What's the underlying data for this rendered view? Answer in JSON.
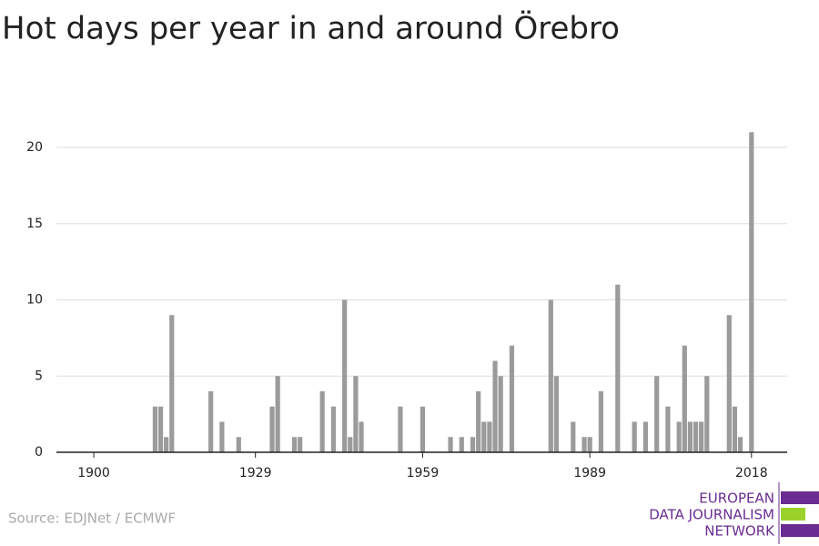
{
  "chart_data": {
    "type": "bar",
    "title": "Hot days per year in and around Örebro",
    "source": "Source: EDJNet / ECMWF",
    "logo": [
      "EUROPEAN",
      "DATA JOURNALISM",
      "NETWORK"
    ],
    "color": "#9b9b9b",
    "x": [
      1900,
      1901,
      1902,
      1903,
      1904,
      1905,
      1906,
      1907,
      1908,
      1909,
      1910,
      1911,
      1912,
      1913,
      1914,
      1915,
      1916,
      1917,
      1918,
      1919,
      1920,
      1921,
      1922,
      1923,
      1924,
      1925,
      1926,
      1927,
      1928,
      1929,
      1930,
      1931,
      1932,
      1933,
      1934,
      1935,
      1936,
      1937,
      1938,
      1939,
      1940,
      1941,
      1942,
      1943,
      1944,
      1945,
      1946,
      1947,
      1948,
      1949,
      1950,
      1951,
      1952,
      1953,
      1954,
      1955,
      1956,
      1957,
      1958,
      1959,
      1960,
      1961,
      1962,
      1963,
      1964,
      1965,
      1966,
      1967,
      1968,
      1969,
      1970,
      1971,
      1972,
      1973,
      1974,
      1975,
      1976,
      1977,
      1978,
      1979,
      1980,
      1981,
      1982,
      1983,
      1984,
      1985,
      1986,
      1987,
      1988,
      1989,
      1990,
      1991,
      1992,
      1993,
      1994,
      1995,
      1996,
      1997,
      1998,
      1999,
      2000,
      2001,
      2002,
      2003,
      2004,
      2005,
      2006,
      2007,
      2008,
      2009,
      2010,
      2011,
      2012,
      2013,
      2014,
      2015,
      2016,
      2017,
      2018
    ],
    "values": [
      0,
      0,
      0,
      0,
      0,
      0,
      0,
      0,
      0,
      0,
      0,
      3,
      3,
      1,
      9,
      0,
      0,
      0,
      0,
      0,
      0,
      4,
      0,
      2,
      0,
      0,
      1,
      0,
      0,
      0,
      0,
      0,
      3,
      5,
      0,
      0,
      1,
      1,
      0,
      0,
      0,
      4,
      0,
      3,
      0,
      10,
      1,
      5,
      2,
      0,
      0,
      0,
      0,
      0,
      0,
      3,
      0,
      0,
      0,
      3,
      0,
      0,
      0,
      0,
      1,
      0,
      1,
      0,
      1,
      4,
      2,
      2,
      6,
      5,
      0,
      7,
      0,
      0,
      0,
      0,
      0,
      0,
      10,
      5,
      0,
      0,
      2,
      0,
      1,
      1,
      0,
      4,
      0,
      0,
      11,
      0,
      0,
      2,
      0,
      2,
      0,
      5,
      0,
      3,
      0,
      2,
      7,
      2,
      2,
      2,
      5,
      0,
      0,
      0,
      9,
      3,
      1,
      0,
      21
    ],
    "xlim": [
      1893.3,
      2024.4
    ],
    "xticks": [
      1900,
      1929,
      1959,
      1989,
      2018
    ],
    "ylim": [
      0,
      22
    ],
    "yticks": [
      0,
      5,
      10,
      15,
      20
    ],
    "grid": true
  }
}
